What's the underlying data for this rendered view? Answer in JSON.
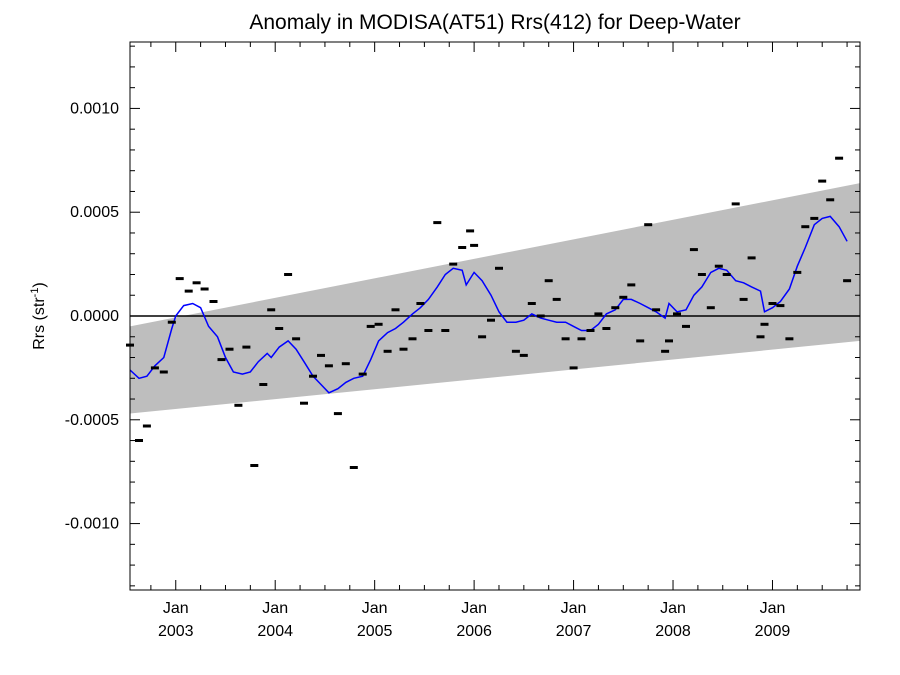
{
  "chart_data": {
    "type": "scatter",
    "title": "Anomaly in MODISA(AT51) Rrs(412) for Deep-Water",
    "ylabel": "Rrs (str",
    "ylabel_superscript": "-1",
    "ylabel_suffix": ")",
    "xlabel": "",
    "xlim": [
      2002.54,
      2009.88
    ],
    "ylim": [
      -0.00132,
      0.00132
    ],
    "y_ticks": [
      -0.001,
      -0.0005,
      0.0,
      0.0005,
      0.001
    ],
    "y_tick_labels": [
      "-0.0010",
      "-0.0005",
      "0.0000",
      "0.0005",
      "0.0010"
    ],
    "x_ticks": [
      {
        "month": "Jan",
        "year": "2003",
        "x": 2003.0
      },
      {
        "month": "Jan",
        "year": "2004",
        "x": 2004.0
      },
      {
        "month": "Jan",
        "year": "2005",
        "x": 2005.0
      },
      {
        "month": "Jan",
        "year": "2006",
        "x": 2006.0
      },
      {
        "month": "Jan",
        "year": "2007",
        "x": 2007.0
      },
      {
        "month": "Jan",
        "year": "2008",
        "x": 2008.0
      },
      {
        "month": "Jan",
        "year": "2009",
        "x": 2009.0
      }
    ],
    "grid": false,
    "band": {
      "x": [
        2002.54,
        2009.88
      ],
      "upper": [
        -5e-05,
        0.00064
      ],
      "lower": [
        -0.00047,
        -0.00012
      ],
      "color": "#bebebe"
    },
    "zero_line": 0.0,
    "colors": {
      "points": "#000000",
      "smooth": "#0000ff",
      "band": "#bebebe",
      "zero": "#000000"
    },
    "points": [
      [
        2002.54,
        -0.00014
      ],
      [
        2002.63,
        -0.0006
      ],
      [
        2002.71,
        -0.00053
      ],
      [
        2002.79,
        -0.00025
      ],
      [
        2002.88,
        -0.00027
      ],
      [
        2002.96,
        -3e-05
      ],
      [
        2003.04,
        0.00018
      ],
      [
        2003.13,
        0.00012
      ],
      [
        2003.21,
        0.00016
      ],
      [
        2003.29,
        0.00013
      ],
      [
        2003.38,
        7e-05
      ],
      [
        2003.46,
        -0.00021
      ],
      [
        2003.54,
        -0.00016
      ],
      [
        2003.63,
        -0.00043
      ],
      [
        2003.71,
        -0.00015
      ],
      [
        2003.79,
        -0.00072
      ],
      [
        2003.88,
        -0.00033
      ],
      [
        2003.96,
        3e-05
      ],
      [
        2004.04,
        -6e-05
      ],
      [
        2004.13,
        0.0002
      ],
      [
        2004.21,
        -0.00011
      ],
      [
        2004.29,
        -0.00042
      ],
      [
        2004.38,
        -0.00029
      ],
      [
        2004.46,
        -0.00019
      ],
      [
        2004.54,
        -0.00024
      ],
      [
        2004.63,
        -0.00047
      ],
      [
        2004.71,
        -0.00023
      ],
      [
        2004.79,
        -0.00073
      ],
      [
        2004.88,
        -0.00028
      ],
      [
        2004.96,
        -5e-05
      ],
      [
        2005.04,
        -4e-05
      ],
      [
        2005.13,
        -0.00017
      ],
      [
        2005.21,
        3e-05
      ],
      [
        2005.29,
        -0.00016
      ],
      [
        2005.38,
        -0.00011
      ],
      [
        2005.46,
        6e-05
      ],
      [
        2005.54,
        -7e-05
      ],
      [
        2005.63,
        0.00045
      ],
      [
        2005.71,
        -7e-05
      ],
      [
        2005.79,
        0.00025
      ],
      [
        2005.88,
        0.00033
      ],
      [
        2005.96,
        0.00041
      ],
      [
        2006.0,
        0.00034
      ],
      [
        2006.08,
        -0.0001
      ],
      [
        2006.17,
        -2e-05
      ],
      [
        2006.25,
        0.00023
      ],
      [
        2006.42,
        -0.00017
      ],
      [
        2006.5,
        -0.00019
      ],
      [
        2006.58,
        6e-05
      ],
      [
        2006.67,
        0.0
      ],
      [
        2006.75,
        0.00017
      ],
      [
        2006.83,
        8e-05
      ],
      [
        2006.92,
        -0.00011
      ],
      [
        2007.0,
        -0.00025
      ],
      [
        2007.08,
        -0.00011
      ],
      [
        2007.17,
        -7e-05
      ],
      [
        2007.25,
        1e-05
      ],
      [
        2007.33,
        -6e-05
      ],
      [
        2007.42,
        4e-05
      ],
      [
        2007.5,
        9e-05
      ],
      [
        2007.58,
        0.00015
      ],
      [
        2007.67,
        -0.00012
      ],
      [
        2007.75,
        0.00044
      ],
      [
        2007.83,
        3e-05
      ],
      [
        2007.92,
        -0.00017
      ],
      [
        2007.96,
        -0.00012
      ],
      [
        2008.04,
        1e-05
      ],
      [
        2008.13,
        -5e-05
      ],
      [
        2008.21,
        0.00032
      ],
      [
        2008.29,
        0.0002
      ],
      [
        2008.38,
        4e-05
      ],
      [
        2008.46,
        0.00024
      ],
      [
        2008.54,
        0.0002
      ],
      [
        2008.63,
        0.00054
      ],
      [
        2008.71,
        8e-05
      ],
      [
        2008.79,
        0.00028
      ],
      [
        2008.88,
        -0.0001
      ],
      [
        2008.92,
        -4e-05
      ],
      [
        2009.0,
        6e-05
      ],
      [
        2009.08,
        5e-05
      ],
      [
        2009.17,
        -0.00011
      ],
      [
        2009.25,
        0.00021
      ],
      [
        2009.33,
        0.00043
      ],
      [
        2009.42,
        0.00047
      ],
      [
        2009.5,
        0.00065
      ],
      [
        2009.58,
        0.00056
      ],
      [
        2009.67,
        0.00076
      ],
      [
        2009.75,
        0.00017
      ]
    ],
    "smooth": [
      [
        2002.54,
        -0.00026
      ],
      [
        2002.63,
        -0.0003
      ],
      [
        2002.71,
        -0.00029
      ],
      [
        2002.79,
        -0.00024
      ],
      [
        2002.88,
        -0.0002
      ],
      [
        2002.96,
        -6e-05
      ],
      [
        2003.0,
        0.0
      ],
      [
        2003.08,
        5e-05
      ],
      [
        2003.17,
        6e-05
      ],
      [
        2003.25,
        4e-05
      ],
      [
        2003.33,
        -5e-05
      ],
      [
        2003.42,
        -0.0001
      ],
      [
        2003.5,
        -0.0002
      ],
      [
        2003.58,
        -0.00027
      ],
      [
        2003.67,
        -0.00028
      ],
      [
        2003.75,
        -0.00027
      ],
      [
        2003.83,
        -0.00022
      ],
      [
        2003.92,
        -0.00018
      ],
      [
        2003.96,
        -0.0002
      ],
      [
        2004.04,
        -0.00015
      ],
      [
        2004.13,
        -0.00012
      ],
      [
        2004.21,
        -0.00016
      ],
      [
        2004.29,
        -0.00022
      ],
      [
        2004.38,
        -0.00029
      ],
      [
        2004.46,
        -0.00033
      ],
      [
        2004.54,
        -0.00037
      ],
      [
        2004.63,
        -0.00035
      ],
      [
        2004.71,
        -0.00032
      ],
      [
        2004.79,
        -0.0003
      ],
      [
        2004.88,
        -0.00029
      ],
      [
        2004.96,
        -0.00021
      ],
      [
        2005.04,
        -0.00012
      ],
      [
        2005.13,
        -8e-05
      ],
      [
        2005.21,
        -6e-05
      ],
      [
        2005.29,
        -3e-05
      ],
      [
        2005.38,
        1e-05
      ],
      [
        2005.46,
        4e-05
      ],
      [
        2005.54,
        8e-05
      ],
      [
        2005.63,
        0.00014
      ],
      [
        2005.71,
        0.0002
      ],
      [
        2005.79,
        0.00023
      ],
      [
        2005.88,
        0.00022
      ],
      [
        2005.92,
        0.00015
      ],
      [
        2006.0,
        0.00021
      ],
      [
        2006.08,
        0.00017
      ],
      [
        2006.17,
        0.0001
      ],
      [
        2006.25,
        2e-05
      ],
      [
        2006.33,
        -3e-05
      ],
      [
        2006.42,
        -3e-05
      ],
      [
        2006.5,
        -2e-05
      ],
      [
        2006.58,
        1e-05
      ],
      [
        2006.67,
        -1e-05
      ],
      [
        2006.75,
        -2e-05
      ],
      [
        2006.83,
        -3e-05
      ],
      [
        2006.92,
        -3e-05
      ],
      [
        2007.0,
        -5e-05
      ],
      [
        2007.08,
        -7e-05
      ],
      [
        2007.17,
        -7e-05
      ],
      [
        2007.25,
        -4e-05
      ],
      [
        2007.33,
        1e-05
      ],
      [
        2007.42,
        3e-05
      ],
      [
        2007.5,
        8e-05
      ],
      [
        2007.58,
        8e-05
      ],
      [
        2007.67,
        6e-05
      ],
      [
        2007.75,
        4e-05
      ],
      [
        2007.83,
        2e-05
      ],
      [
        2007.92,
        -1e-05
      ],
      [
        2007.96,
        6e-05
      ],
      [
        2008.04,
        2e-05
      ],
      [
        2008.13,
        3e-05
      ],
      [
        2008.21,
        0.0001
      ],
      [
        2008.29,
        0.00014
      ],
      [
        2008.38,
        0.00021
      ],
      [
        2008.46,
        0.00023
      ],
      [
        2008.54,
        0.00022
      ],
      [
        2008.63,
        0.00017
      ],
      [
        2008.71,
        0.00016
      ],
      [
        2008.79,
        0.00014
      ],
      [
        2008.88,
        0.00012
      ],
      [
        2008.92,
        2e-05
      ],
      [
        2009.0,
        4e-05
      ],
      [
        2009.08,
        7e-05
      ],
      [
        2009.17,
        0.00013
      ],
      [
        2009.25,
        0.00024
      ],
      [
        2009.33,
        0.00033
      ],
      [
        2009.42,
        0.00044
      ],
      [
        2009.5,
        0.00047
      ],
      [
        2009.58,
        0.00048
      ],
      [
        2009.67,
        0.00043
      ],
      [
        2009.75,
        0.00036
      ]
    ]
  }
}
